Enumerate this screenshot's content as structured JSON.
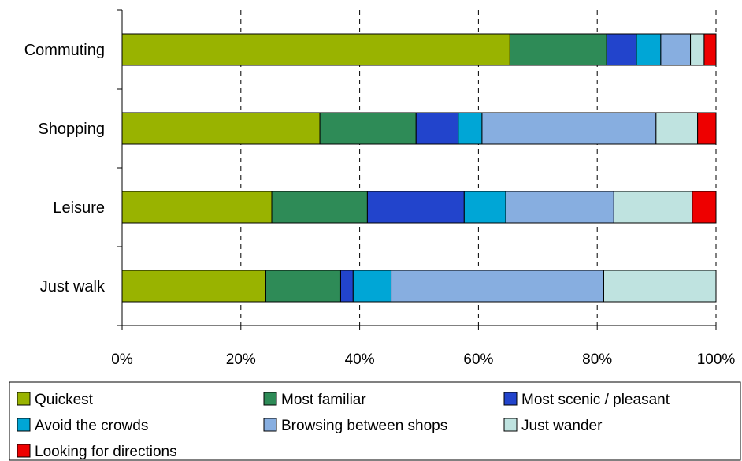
{
  "chart_data": {
    "type": "bar",
    "orientation": "horizontal",
    "stacked": "percent",
    "categories": [
      "Commuting",
      "Shopping",
      "Leisure",
      "Just walk"
    ],
    "series": [
      {
        "name": "Quickest",
        "color": "#99b300",
        "values": [
          65.3,
          33.3,
          25.2,
          24.2
        ]
      },
      {
        "name": "Most familiar",
        "color": "#2e8b57",
        "values": [
          16.3,
          16.2,
          16.1,
          12.6
        ]
      },
      {
        "name": "Most scenic / pleasant",
        "color": "#2244cc",
        "values": [
          5.0,
          7.1,
          16.3,
          2.1
        ]
      },
      {
        "name": "Avoid the crowds",
        "color": "#00a6d6",
        "values": [
          4.1,
          4.0,
          7.0,
          6.4
        ]
      },
      {
        "name": "Browsing between shops",
        "color": "#87aee0",
        "values": [
          5.0,
          29.3,
          18.2,
          35.8
        ]
      },
      {
        "name": "Just wander",
        "color": "#bfe3e0",
        "values": [
          2.3,
          7.0,
          13.2,
          18.9
        ]
      },
      {
        "name": "Looking for directions",
        "color": "#ee0000",
        "values": [
          2.0,
          3.1,
          4.0,
          0
        ]
      }
    ],
    "xaxis": {
      "ticks": [
        "0%",
        "20%",
        "40%",
        "60%",
        "80%",
        "100%"
      ],
      "range": [
        0,
        100
      ],
      "gridlines": "dashed vertical"
    },
    "legend_position": "bottom"
  }
}
